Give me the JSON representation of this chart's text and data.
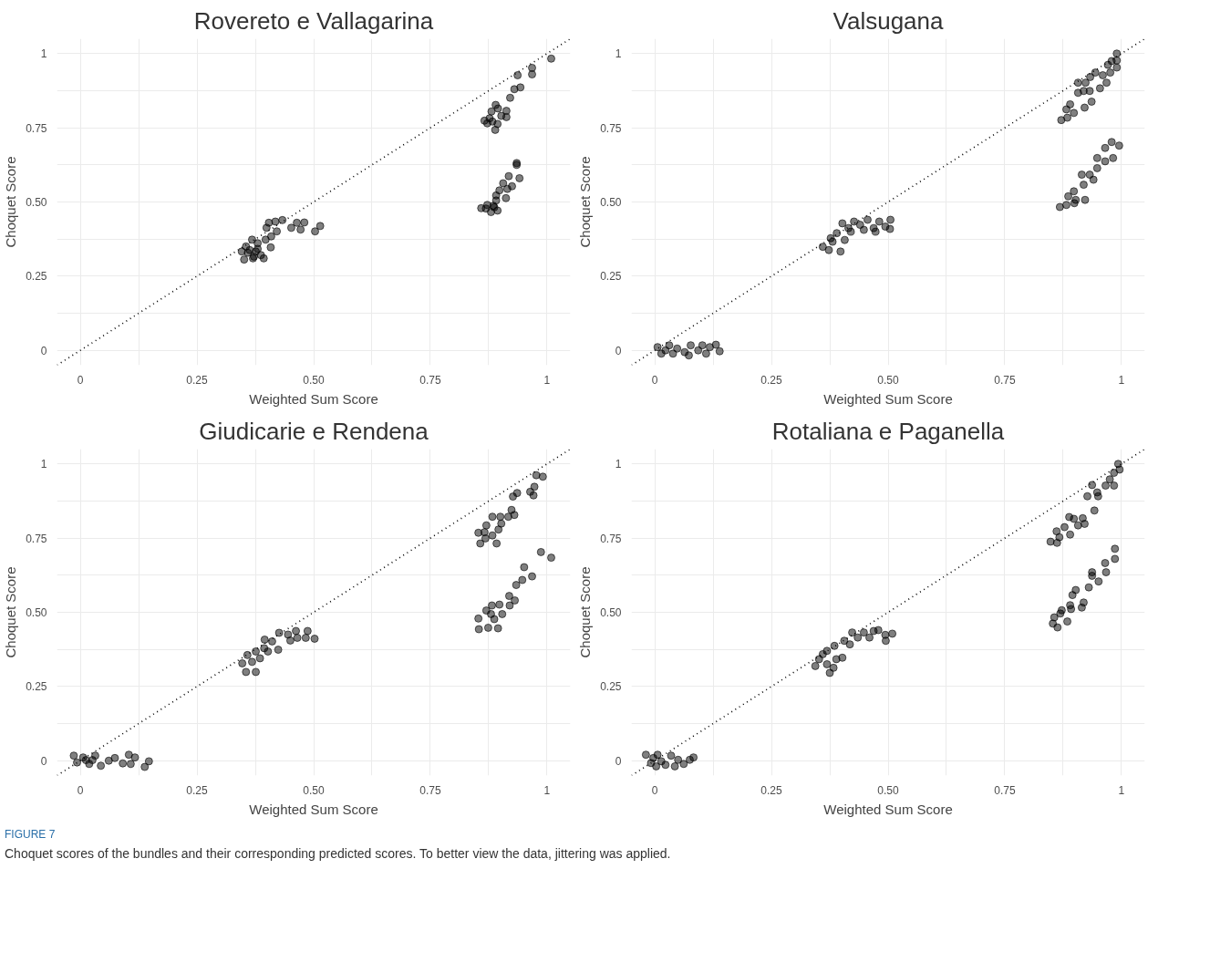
{
  "chart_data": [
    {
      "type": "scatter",
      "title": "Rovereto e Vallagarina",
      "xlabel": "Weighted Sum Score",
      "ylabel": "Choquet Score",
      "grid": true,
      "xlim": [
        -0.05,
        1.05
      ],
      "ylim": [
        -0.05,
        1.05
      ],
      "xticks": [
        0,
        {
          "value": 0.125,
          "label": null
        },
        0.25,
        {
          "value": 0.375,
          "label": null
        },
        {
          "value": 0.5,
          "label": "0.50"
        },
        {
          "value": 0.625,
          "label": null
        },
        0.75,
        {
          "value": 0.875,
          "label": null
        },
        1
      ],
      "yticks": [
        0,
        {
          "value": 0.125,
          "label": null
        },
        0.25,
        {
          "value": 0.375,
          "label": null
        },
        {
          "value": 0.5,
          "label": "0.50"
        },
        {
          "value": 0.625,
          "label": null
        },
        0.75,
        {
          "value": 0.875,
          "label": null
        },
        1
      ],
      "series": [
        {
          "type": "line",
          "color": "#000000",
          "line_style": "dotted",
          "x": [
            -0.05,
            1.05
          ],
          "values": [
            -0.05,
            1.05
          ]
        },
        {
          "color": "#000000",
          "marker": "circle",
          "x": [
            1.009,
            0.968,
            0.968,
            0.937,
            0.943,
            0.93,
            0.921,
            0.89,
            0.881,
            0.895,
            0.913,
            0.902,
            0.913,
            0.866,
            0.877,
            0.883,
            0.894,
            0.889,
            0.872,
            0.935,
            0.935,
            0.941,
            0.918,
            0.925,
            0.906,
            0.915,
            0.898,
            0.891,
            0.912,
            0.891,
            0.885,
            0.872,
            0.859,
            0.869,
            0.88,
            0.894,
            0.887,
            0.514,
            0.503,
            0.48,
            0.472,
            0.464,
            0.452,
            0.433,
            0.418,
            0.404,
            0.421,
            0.399,
            0.409,
            0.397,
            0.38,
            0.408,
            0.368,
            0.363,
            0.355,
            0.376,
            0.387,
            0.393,
            0.37,
            0.351,
            0.359,
            0.38,
            0.372,
            0.346
          ],
          "values": [
            0.983,
            0.952,
            0.93,
            0.927,
            0.886,
            0.88,
            0.851,
            0.827,
            0.805,
            0.815,
            0.807,
            0.79,
            0.786,
            0.774,
            0.782,
            0.771,
            0.763,
            0.743,
            0.765,
            0.631,
            0.625,
            0.58,
            0.587,
            0.553,
            0.563,
            0.544,
            0.539,
            0.522,
            0.513,
            0.505,
            0.487,
            0.49,
            0.479,
            0.478,
            0.466,
            0.471,
            0.482,
            0.419,
            0.401,
            0.431,
            0.407,
            0.43,
            0.413,
            0.439,
            0.434,
            0.43,
            0.401,
            0.413,
            0.384,
            0.373,
            0.361,
            0.347,
            0.373,
            0.338,
            0.35,
            0.333,
            0.321,
            0.31,
            0.31,
            0.306,
            0.329,
            0.342,
            0.316,
            0.333
          ]
        }
      ]
    },
    {
      "type": "scatter",
      "title": "Valsugana",
      "xlabel": "Weighted Sum Score",
      "ylabel": "Choquet Score",
      "grid": true,
      "xlim": [
        -0.05,
        1.05
      ],
      "ylim": [
        -0.05,
        1.05
      ],
      "xticks": [
        0,
        {
          "value": 0.125,
          "label": null
        },
        0.25,
        {
          "value": 0.375,
          "label": null
        },
        {
          "value": 0.5,
          "label": "0.50"
        },
        {
          "value": 0.625,
          "label": null
        },
        0.75,
        {
          "value": 0.875,
          "label": null
        },
        1
      ],
      "yticks": [
        0,
        {
          "value": 0.125,
          "label": null
        },
        0.25,
        {
          "value": 0.375,
          "label": null
        },
        {
          "value": 0.5,
          "label": "0.50"
        },
        {
          "value": 0.625,
          "label": null
        },
        0.75,
        {
          "value": 0.875,
          "label": null
        },
        1
      ],
      "series": [
        {
          "type": "line",
          "color": "#000000",
          "line_style": "dotted",
          "x": [
            -0.05,
            1.05
          ],
          "values": [
            -0.05,
            1.05
          ]
        },
        {
          "color": "#000000",
          "marker": "circle",
          "x": [
            0.006,
            0.014,
            0.031,
            0.048,
            0.064,
            0.077,
            0.093,
            0.11,
            0.118,
            0.131,
            0.139,
            0.039,
            0.073,
            0.102,
            0.023,
            0.36,
            0.373,
            0.381,
            0.398,
            0.39,
            0.402,
            0.415,
            0.427,
            0.44,
            0.456,
            0.469,
            0.481,
            0.494,
            0.505,
            0.504,
            0.407,
            0.42,
            0.448,
            0.473,
            0.377,
            0.99,
            0.99,
            0.99,
            0.979,
            0.971,
            0.976,
            0.96,
            0.944,
            0.933,
            0.923,
            0.907,
            0.919,
            0.932,
            0.907,
            0.89,
            0.882,
            0.898,
            0.871,
            0.884,
            0.968,
            0.954,
            0.936,
            0.921,
            0.995,
            0.979,
            0.965,
            0.982,
            0.965,
            0.948,
            0.948,
            0.932,
            0.915,
            0.94,
            0.919,
            0.898,
            0.886,
            0.902,
            0.868,
            0.882,
            0.922,
            0.899
          ],
          "values": [
            0.011,
            -0.011,
            0.017,
            0.006,
            -0.006,
            0.017,
            0.0,
            -0.011,
            0.011,
            0.019,
            -0.003,
            -0.011,
            -0.017,
            0.017,
            0.0,
            0.349,
            0.338,
            0.366,
            0.333,
            0.395,
            0.428,
            0.412,
            0.434,
            0.423,
            0.44,
            0.412,
            0.434,
            0.417,
            0.44,
            0.409,
            0.372,
            0.4,
            0.406,
            0.4,
            0.378,
            1.0,
            0.977,
            0.953,
            0.975,
            0.962,
            0.936,
            0.927,
            0.936,
            0.921,
            0.902,
            0.902,
            0.874,
            0.874,
            0.868,
            0.829,
            0.812,
            0.8,
            0.776,
            0.784,
            0.902,
            0.883,
            0.838,
            0.818,
            0.69,
            0.702,
            0.682,
            0.648,
            0.637,
            0.648,
            0.614,
            0.592,
            0.592,
            0.575,
            0.558,
            0.536,
            0.519,
            0.507,
            0.483,
            0.49,
            0.507,
            0.496
          ]
        }
      ]
    },
    {
      "type": "scatter",
      "title": "Giudicarie e Rendena",
      "xlabel": "Weighted Sum Score",
      "ylabel": "Choquet Score",
      "grid": true,
      "xlim": [
        -0.05,
        1.05
      ],
      "ylim": [
        -0.05,
        1.05
      ],
      "xticks": [
        0,
        {
          "value": 0.125,
          "label": null
        },
        0.25,
        {
          "value": 0.375,
          "label": null
        },
        {
          "value": 0.5,
          "label": "0.50"
        },
        {
          "value": 0.625,
          "label": null
        },
        0.75,
        {
          "value": 0.875,
          "label": null
        },
        1
      ],
      "yticks": [
        0,
        {
          "value": 0.125,
          "label": null
        },
        0.25,
        {
          "value": 0.375,
          "label": null
        },
        {
          "value": 0.5,
          "label": "0.50"
        },
        {
          "value": 0.625,
          "label": null
        },
        0.75,
        {
          "value": 0.875,
          "label": null
        },
        1
      ],
      "series": [
        {
          "type": "line",
          "color": "#000000",
          "line_style": "dotted",
          "x": [
            -0.05,
            1.05
          ],
          "values": [
            -0.05,
            1.05
          ]
        },
        {
          "color": "#000000",
          "marker": "circle",
          "x": [
            -0.014,
            -0.007,
            0.006,
            0.019,
            0.032,
            0.044,
            0.061,
            0.074,
            0.091,
            0.104,
            0.117,
            0.108,
            0.138,
            0.147,
            0.012,
            0.026,
            0.347,
            0.355,
            0.368,
            0.376,
            0.385,
            0.376,
            0.394,
            0.395,
            0.411,
            0.424,
            0.426,
            0.445,
            0.462,
            0.45,
            0.465,
            0.483,
            0.487,
            0.502,
            0.358,
            0.402,
            0.977,
            0.991,
            0.973,
            0.964,
            0.971,
            0.936,
            0.927,
            0.924,
            0.93,
            0.917,
            0.9,
            0.883,
            0.902,
            0.87,
            0.866,
            0.853,
            0.868,
            0.857,
            0.892,
            0.883,
            0.896,
            0.987,
            1.009,
            0.951,
            0.968,
            0.947,
            0.934,
            0.931,
            0.919,
            0.92,
            0.898,
            0.882,
            0.87,
            0.853,
            0.854,
            0.874,
            0.895,
            0.887,
            0.904,
            0.88
          ],
          "values": [
            0.017,
            -0.006,
            0.011,
            -0.011,
            0.017,
            -0.017,
            0.0,
            0.009,
            -0.009,
            0.02,
            0.011,
            -0.011,
            -0.021,
            -0.002,
            0.002,
            0.002,
            0.328,
            0.299,
            0.333,
            0.299,
            0.345,
            0.368,
            0.379,
            0.408,
            0.402,
            0.374,
            0.431,
            0.425,
            0.437,
            0.405,
            0.414,
            0.414,
            0.437,
            0.411,
            0.356,
            0.368,
            0.962,
            0.957,
            0.923,
            0.906,
            0.894,
            0.902,
            0.89,
            0.845,
            0.828,
            0.822,
            0.822,
            0.822,
            0.799,
            0.793,
            0.77,
            0.768,
            0.749,
            0.732,
            0.732,
            0.759,
            0.779,
            0.703,
            0.684,
            0.652,
            0.621,
            0.609,
            0.592,
            0.54,
            0.555,
            0.523,
            0.526,
            0.523,
            0.506,
            0.479,
            0.443,
            0.448,
            0.446,
            0.477,
            0.494,
            0.494
          ]
        }
      ]
    },
    {
      "type": "scatter",
      "title": "Rotaliana e Paganella",
      "xlabel": "Weighted Sum Score",
      "ylabel": "Choquet Score",
      "grid": true,
      "xlim": [
        -0.05,
        1.05
      ],
      "ylim": [
        -0.05,
        1.05
      ],
      "xticks": [
        0,
        {
          "value": 0.125,
          "label": null
        },
        0.25,
        {
          "value": 0.375,
          "label": null
        },
        {
          "value": 0.5,
          "label": "0.50"
        },
        {
          "value": 0.625,
          "label": null
        },
        0.75,
        {
          "value": 0.875,
          "label": null
        },
        1
      ],
      "yticks": [
        0,
        {
          "value": 0.125,
          "label": null
        },
        0.25,
        {
          "value": 0.375,
          "label": null
        },
        {
          "value": 0.5,
          "label": "0.50"
        },
        {
          "value": 0.625,
          "label": null
        },
        0.75,
        {
          "value": 0.875,
          "label": null
        },
        1
      ],
      "annotations": [
        "FIGURE 7",
        "Choquet scores of the bundles and their corresponding predicted scores. To better view the data, jittering was applied."
      ],
      "series": [
        {
          "type": "line",
          "color": "#000000",
          "line_style": "dotted",
          "x": [
            -0.05,
            1.05
          ],
          "values": [
            -0.05,
            1.05
          ]
        },
        {
          "color": "#000000",
          "marker": "circle",
          "x": [
            -0.019,
            -0.008,
            -0.003,
            0.006,
            0.014,
            0.023,
            0.035,
            0.043,
            0.05,
            0.062,
            0.075,
            0.083,
            0.003,
            0.344,
            0.352,
            0.36,
            0.369,
            0.375,
            0.383,
            0.389,
            0.385,
            0.402,
            0.406,
            0.418,
            0.423,
            0.435,
            0.448,
            0.46,
            0.469,
            0.479,
            0.494,
            0.495,
            0.509,
            0.369,
            0.993,
            0.996,
            0.984,
            0.975,
            0.984,
            0.966,
            0.937,
            0.948,
            0.95,
            0.927,
            0.942,
            0.917,
            0.921,
            0.907,
            0.898,
            0.888,
            0.878,
            0.89,
            0.861,
            0.867,
            0.848,
            0.862,
            0.986,
            0.986,
            0.965,
            0.967,
            0.937,
            0.937,
            0.951,
            0.93,
            0.902,
            0.895,
            0.919,
            0.915,
            0.89,
            0.872,
            0.869,
            0.856,
            0.853,
            0.863,
            0.884,
            0.892
          ],
          "values": [
            0.02,
            -0.008,
            0.009,
            0.02,
            -0.002,
            -0.014,
            0.017,
            -0.019,
            0.003,
            -0.011,
            0.003,
            0.011,
            -0.019,
            0.319,
            0.342,
            0.359,
            0.325,
            0.296,
            0.313,
            0.342,
            0.387,
            0.347,
            0.404,
            0.392,
            0.432,
            0.415,
            0.432,
            0.415,
            0.437,
            0.44,
            0.424,
            0.404,
            0.428,
            0.37,
            1.0,
            0.981,
            0.97,
            0.948,
            0.927,
            0.927,
            0.929,
            0.904,
            0.891,
            0.891,
            0.843,
            0.817,
            0.798,
            0.793,
            0.815,
            0.821,
            0.787,
            0.762,
            0.773,
            0.753,
            0.738,
            0.734,
            0.714,
            0.68,
            0.666,
            0.635,
            0.635,
            0.623,
            0.604,
            0.584,
            0.575,
            0.558,
            0.533,
            0.516,
            0.524,
            0.507,
            0.496,
            0.483,
            0.462,
            0.449,
            0.469,
            0.511
          ]
        }
      ]
    }
  ]
}
